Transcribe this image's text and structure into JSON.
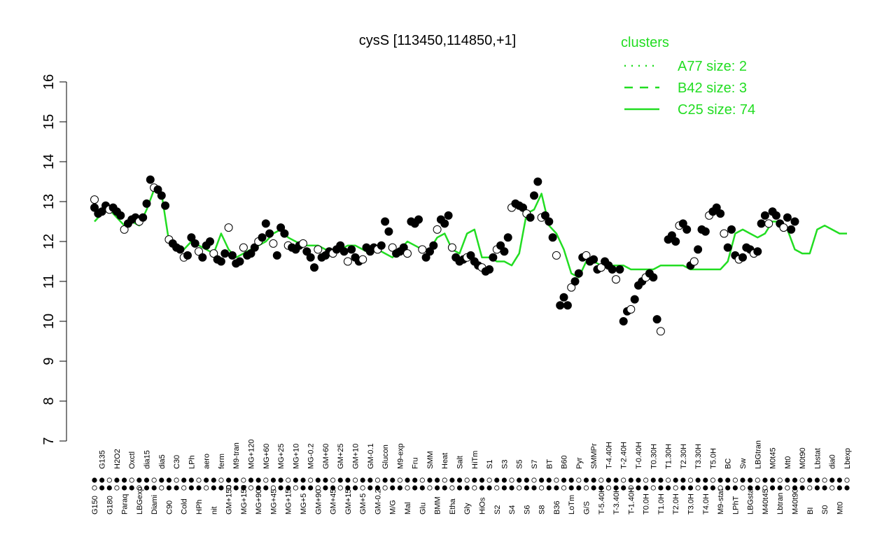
{
  "chart_data": {
    "type": "line",
    "title": "cysS [113450,114850,+1]",
    "xlabel": "",
    "ylabel": "",
    "ylim": [
      7,
      16
    ],
    "yticks": [
      7,
      8,
      9,
      10,
      11,
      12,
      13,
      14,
      15,
      16
    ],
    "grid": false,
    "legend": {
      "title": "clusters",
      "placement": "top-right",
      "entries": [
        {
          "label": "A77 size: 2",
          "style": "dotted"
        },
        {
          "label": "B42 size: 3",
          "style": "dashed"
        },
        {
          "label": "C25 size: 74",
          "style": "solid"
        }
      ]
    },
    "colors": {
      "line": "#22dd22",
      "point_dark": "#000000",
      "point_light": "#ffffff",
      "legend_text": "#22dd22"
    },
    "x_tick_labels": [
      "G150",
      "G135",
      "G180",
      "H2O2",
      "Paraq",
      "Oxctl",
      "LBGexp",
      "dia15",
      "Diami",
      "dia5",
      "C90",
      "C30",
      "Cold",
      "LPh",
      "HPh",
      "aero",
      "nit",
      "ferm",
      "GM+150",
      "M9-tran",
      "MG+150",
      "MG+120",
      "MG+90",
      "MG+60",
      "MG+45",
      "MG+25",
      "MG+15",
      "MG+10",
      "MG+5",
      "MG-0.2",
      "GM+90",
      "GM+60",
      "GM+45",
      "GM+25",
      "GM+15",
      "GM+10",
      "GM+5",
      "GM-0.1",
      "GM-0.2",
      "Glucon",
      "M/G",
      "M9-exp",
      "Mal",
      "Fru",
      "Glu",
      "SMM",
      "BMM",
      "Heat",
      "Etha",
      "Salt",
      "Gly",
      "HiTm",
      "HiOs",
      "S1",
      "S2",
      "S3",
      "S4",
      "S5",
      "S6",
      "S7",
      "S8",
      "BT",
      "B36",
      "B60",
      "LoTm",
      "Pyr",
      "G/S",
      "SMMPr",
      "T-5.40H",
      "T-4.40H",
      "T-3.40H",
      "T-2.40H",
      "T-1.40H",
      "T-0.40H",
      "T0.0H",
      "T0.30H",
      "T1.0H",
      "T1.30H",
      "T2.0H",
      "T2.30H",
      "T3.0H",
      "T3.30H",
      "T4.0H",
      "T5.0H",
      "M9-stat",
      "BC",
      "LPhT",
      "Sw",
      "LBGstat",
      "LBGtran",
      "M40t45",
      "M0t45",
      "Lbtran",
      "Mt0",
      "M40t90",
      "M0t90",
      "BI",
      "Lbstat",
      "S0",
      "dia0",
      "Mt0",
      "Lbexp"
    ],
    "series": [
      {
        "style": "solid",
        "x": [
          0,
          1,
          2,
          3,
          4,
          5,
          6,
          7,
          8,
          9,
          10,
          11,
          12,
          13,
          14,
          15,
          16,
          17,
          18,
          19,
          20,
          21,
          22,
          23,
          24,
          25,
          26,
          27,
          28,
          29,
          30,
          31,
          32,
          33,
          34,
          35,
          36,
          37,
          38,
          39,
          40,
          41,
          42,
          43,
          44,
          45,
          46,
          47,
          48,
          49,
          50,
          51,
          52,
          53,
          54,
          55,
          56,
          57,
          58,
          59,
          60,
          61,
          62,
          63,
          64,
          65,
          66,
          67,
          68,
          69,
          70,
          71,
          72,
          73,
          74,
          75,
          76,
          77,
          78,
          79,
          80,
          81,
          82,
          83,
          84,
          85,
          86,
          87,
          88,
          89,
          90,
          91,
          92,
          93,
          94,
          95,
          96,
          97,
          98,
          99,
          100,
          101
        ],
        "y": [
          12.5,
          12.7,
          12.8,
          12.6,
          12.4,
          12.5,
          12.4,
          12.8,
          13.3,
          13.2,
          12.0,
          11.9,
          11.8,
          12.0,
          11.9,
          11.8,
          11.7,
          12.2,
          11.8,
          11.6,
          11.7,
          11.8,
          11.9,
          12.0,
          12.2,
          12.3,
          12.1,
          12.0,
          11.9,
          11.9,
          11.9,
          11.8,
          11.8,
          11.8,
          11.9,
          11.9,
          11.8,
          11.7,
          11.8,
          11.7,
          11.6,
          11.8,
          12.0,
          11.9,
          11.8,
          11.8,
          12.1,
          12.2,
          11.8,
          11.7,
          12.2,
          12.3,
          11.6,
          11.6,
          11.5,
          11.5,
          11.4,
          11.7,
          12.7,
          12.8,
          13.2,
          12.4,
          12.2,
          11.8,
          11.2,
          11.1,
          11.5,
          11.5,
          11.4,
          11.4,
          11.4,
          11.4,
          11.3,
          11.3,
          11.3,
          11.3,
          11.4,
          11.4,
          11.4,
          11.4,
          11.3,
          11.3,
          11.3,
          11.3,
          11.3,
          11.5,
          12.2,
          12.3,
          12.2,
          12.1,
          12.2,
          12.5,
          12.5,
          12.3,
          11.8,
          11.7,
          11.7,
          12.3,
          12.4,
          12.3,
          12.2,
          12.2
        ]
      }
    ],
    "points": [
      {
        "x": 0,
        "y": 12.85
      },
      {
        "x": 0,
        "y": 13.05
      },
      {
        "x": 0.5,
        "y": 12.7
      },
      {
        "x": 1,
        "y": 12.75
      },
      {
        "x": 1.5,
        "y": 12.9
      },
      {
        "x": 2,
        "y": 12.8
      },
      {
        "x": 2.5,
        "y": 12.85
      },
      {
        "x": 3,
        "y": 12.75
      },
      {
        "x": 3.5,
        "y": 12.65
      },
      {
        "x": 4,
        "y": 12.3
      },
      {
        "x": 4.5,
        "y": 12.45
      },
      {
        "x": 5,
        "y": 12.55
      },
      {
        "x": 5.5,
        "y": 12.6
      },
      {
        "x": 6,
        "y": 12.5
      },
      {
        "x": 6.5,
        "y": 12.6
      },
      {
        "x": 7,
        "y": 12.95
      },
      {
        "x": 7.5,
        "y": 13.55
      },
      {
        "x": 8,
        "y": 13.35
      },
      {
        "x": 8.5,
        "y": 13.3
      },
      {
        "x": 9,
        "y": 13.15
      },
      {
        "x": 9.5,
        "y": 12.9
      },
      {
        "x": 10,
        "y": 12.05
      },
      {
        "x": 10.5,
        "y": 11.95
      },
      {
        "x": 11,
        "y": 11.85
      },
      {
        "x": 11.5,
        "y": 11.8
      },
      {
        "x": 12,
        "y": 11.6
      },
      {
        "x": 12.5,
        "y": 11.65
      },
      {
        "x": 13,
        "y": 12.1
      },
      {
        "x": 13.5,
        "y": 11.95
      },
      {
        "x": 14,
        "y": 11.75
      },
      {
        "x": 14.5,
        "y": 11.6
      },
      {
        "x": 15,
        "y": 11.9
      },
      {
        "x": 15.5,
        "y": 12.0
      },
      {
        "x": 16,
        "y": 11.7
      },
      {
        "x": 16.5,
        "y": 11.55
      },
      {
        "x": 17,
        "y": 11.5
      },
      {
        "x": 17.5,
        "y": 11.7
      },
      {
        "x": 18,
        "y": 12.35
      },
      {
        "x": 18.5,
        "y": 11.65
      },
      {
        "x": 19,
        "y": 11.45
      },
      {
        "x": 19.5,
        "y": 11.5
      },
      {
        "x": 20,
        "y": 11.85
      },
      {
        "x": 20.5,
        "y": 11.65
      },
      {
        "x": 21,
        "y": 11.7
      },
      {
        "x": 21.5,
        "y": 11.85
      },
      {
        "x": 22,
        "y": 12.0
      },
      {
        "x": 22.5,
        "y": 12.1
      },
      {
        "x": 23,
        "y": 12.45
      },
      {
        "x": 23.5,
        "y": 12.2
      },
      {
        "x": 24,
        "y": 11.95
      },
      {
        "x": 24.5,
        "y": 11.65
      },
      {
        "x": 25,
        "y": 12.35
      },
      {
        "x": 25.5,
        "y": 12.2
      },
      {
        "x": 26,
        "y": 11.9
      },
      {
        "x": 26.5,
        "y": 11.85
      },
      {
        "x": 27,
        "y": 11.8
      },
      {
        "x": 27.5,
        "y": 11.9
      },
      {
        "x": 28,
        "y": 11.95
      },
      {
        "x": 28.5,
        "y": 11.75
      },
      {
        "x": 29,
        "y": 11.6
      },
      {
        "x": 29.5,
        "y": 11.35
      },
      {
        "x": 30,
        "y": 11.8
      },
      {
        "x": 30.5,
        "y": 11.6
      },
      {
        "x": 31,
        "y": 11.65
      },
      {
        "x": 31.5,
        "y": 11.75
      },
      {
        "x": 32,
        "y": 11.7
      },
      {
        "x": 32.5,
        "y": 11.8
      },
      {
        "x": 33,
        "y": 11.9
      },
      {
        "x": 33.5,
        "y": 11.75
      },
      {
        "x": 34,
        "y": 11.5
      },
      {
        "x": 34.5,
        "y": 11.8
      },
      {
        "x": 35,
        "y": 11.6
      },
      {
        "x": 35.5,
        "y": 11.5
      },
      {
        "x": 36,
        "y": 11.55
      },
      {
        "x": 36.5,
        "y": 11.85
      },
      {
        "x": 37,
        "y": 11.75
      },
      {
        "x": 37.5,
        "y": 11.85
      },
      {
        "x": 38,
        "y": 11.8
      },
      {
        "x": 38.5,
        "y": 11.9
      },
      {
        "x": 39,
        "y": 12.5
      },
      {
        "x": 39.5,
        "y": 12.25
      },
      {
        "x": 40,
        "y": 11.85
      },
      {
        "x": 40.5,
        "y": 11.7
      },
      {
        "x": 41,
        "y": 11.75
      },
      {
        "x": 41.5,
        "y": 11.85
      },
      {
        "x": 42,
        "y": 11.7
      },
      {
        "x": 42.5,
        "y": 12.5
      },
      {
        "x": 43,
        "y": 12.45
      },
      {
        "x": 43.5,
        "y": 12.55
      },
      {
        "x": 44,
        "y": 11.8
      },
      {
        "x": 44.5,
        "y": 11.6
      },
      {
        "x": 45,
        "y": 11.75
      },
      {
        "x": 45.5,
        "y": 11.9
      },
      {
        "x": 46,
        "y": 12.3
      },
      {
        "x": 46.5,
        "y": 12.55
      },
      {
        "x": 47,
        "y": 12.45
      },
      {
        "x": 47.5,
        "y": 12.65
      },
      {
        "x": 48,
        "y": 11.85
      },
      {
        "x": 48.5,
        "y": 11.6
      },
      {
        "x": 49,
        "y": 11.5
      },
      {
        "x": 49.5,
        "y": 11.55
      },
      {
        "x": 50,
        "y": 11.6
      },
      {
        "x": 50.5,
        "y": 11.65
      },
      {
        "x": 51,
        "y": 11.5
      },
      {
        "x": 51.5,
        "y": 11.4
      },
      {
        "x": 52,
        "y": 11.35
      },
      {
        "x": 52.5,
        "y": 11.25
      },
      {
        "x": 53,
        "y": 11.3
      },
      {
        "x": 53.5,
        "y": 11.6
      },
      {
        "x": 54,
        "y": 11.8
      },
      {
        "x": 54.5,
        "y": 11.9
      },
      {
        "x": 55,
        "y": 11.75
      },
      {
        "x": 55.5,
        "y": 12.1
      },
      {
        "x": 56,
        "y": 12.85
      },
      {
        "x": 56.5,
        "y": 12.95
      },
      {
        "x": 57,
        "y": 12.9
      },
      {
        "x": 57.5,
        "y": 12.85
      },
      {
        "x": 58,
        "y": 12.7
      },
      {
        "x": 58.5,
        "y": 12.6
      },
      {
        "x": 59,
        "y": 13.15
      },
      {
        "x": 59.5,
        "y": 13.5
      },
      {
        "x": 60,
        "y": 12.6
      },
      {
        "x": 60.5,
        "y": 12.65
      },
      {
        "x": 61,
        "y": 12.5
      },
      {
        "x": 61.5,
        "y": 12.1
      },
      {
        "x": 62,
        "y": 11.65
      },
      {
        "x": 62.5,
        "y": 10.4
      },
      {
        "x": 63,
        "y": 10.6
      },
      {
        "x": 63.5,
        "y": 10.4
      },
      {
        "x": 64,
        "y": 10.85
      },
      {
        "x": 64.5,
        "y": 11.0
      },
      {
        "x": 65,
        "y": 11.2
      },
      {
        "x": 65.5,
        "y": 11.6
      },
      {
        "x": 66,
        "y": 11.65
      },
      {
        "x": 66.5,
        "y": 11.5
      },
      {
        "x": 67,
        "y": 11.55
      },
      {
        "x": 67.5,
        "y": 11.3
      },
      {
        "x": 68,
        "y": 11.35
      },
      {
        "x": 68.5,
        "y": 11.5
      },
      {
        "x": 69,
        "y": 11.4
      },
      {
        "x": 69.5,
        "y": 11.3
      },
      {
        "x": 70,
        "y": 11.05
      },
      {
        "x": 70.5,
        "y": 11.3
      },
      {
        "x": 71,
        "y": 10.0
      },
      {
        "x": 71.5,
        "y": 10.25
      },
      {
        "x": 72,
        "y": 10.3
      },
      {
        "x": 72.5,
        "y": 10.55
      },
      {
        "x": 73,
        "y": 10.9
      },
      {
        "x": 73.5,
        "y": 11.0
      },
      {
        "x": 74,
        "y": 11.1
      },
      {
        "x": 74.5,
        "y": 11.2
      },
      {
        "x": 75,
        "y": 11.1
      },
      {
        "x": 75.5,
        "y": 10.05
      },
      {
        "x": 76,
        "y": 9.75
      },
      {
        "x": 77,
        "y": 12.05
      },
      {
        "x": 77.5,
        "y": 12.15
      },
      {
        "x": 78,
        "y": 12.0
      },
      {
        "x": 78.5,
        "y": 12.4
      },
      {
        "x": 79,
        "y": 12.45
      },
      {
        "x": 79.5,
        "y": 12.3
      },
      {
        "x": 80,
        "y": 11.4
      },
      {
        "x": 80.5,
        "y": 11.5
      },
      {
        "x": 81,
        "y": 11.8
      },
      {
        "x": 81.5,
        "y": 12.3
      },
      {
        "x": 82,
        "y": 12.25
      },
      {
        "x": 82.5,
        "y": 12.65
      },
      {
        "x": 83,
        "y": 12.75
      },
      {
        "x": 83.5,
        "y": 12.85
      },
      {
        "x": 84,
        "y": 12.7
      },
      {
        "x": 84.5,
        "y": 12.2
      },
      {
        "x": 85,
        "y": 11.85
      },
      {
        "x": 85.5,
        "y": 12.3
      },
      {
        "x": 86,
        "y": 11.65
      },
      {
        "x": 86.5,
        "y": 11.55
      },
      {
        "x": 87,
        "y": 11.6
      },
      {
        "x": 87.5,
        "y": 11.85
      },
      {
        "x": 88,
        "y": 11.8
      },
      {
        "x": 88.5,
        "y": 11.7
      },
      {
        "x": 89,
        "y": 11.75
      },
      {
        "x": 89.5,
        "y": 12.45
      },
      {
        "x": 90,
        "y": 12.65
      },
      {
        "x": 90.5,
        "y": 12.45
      },
      {
        "x": 91,
        "y": 12.75
      },
      {
        "x": 91.5,
        "y": 12.65
      },
      {
        "x": 92,
        "y": 12.45
      },
      {
        "x": 92.5,
        "y": 12.35
      },
      {
        "x": 93,
        "y": 12.6
      },
      {
        "x": 93.5,
        "y": 12.3
      },
      {
        "x": 94,
        "y": 12.5
      }
    ]
  }
}
